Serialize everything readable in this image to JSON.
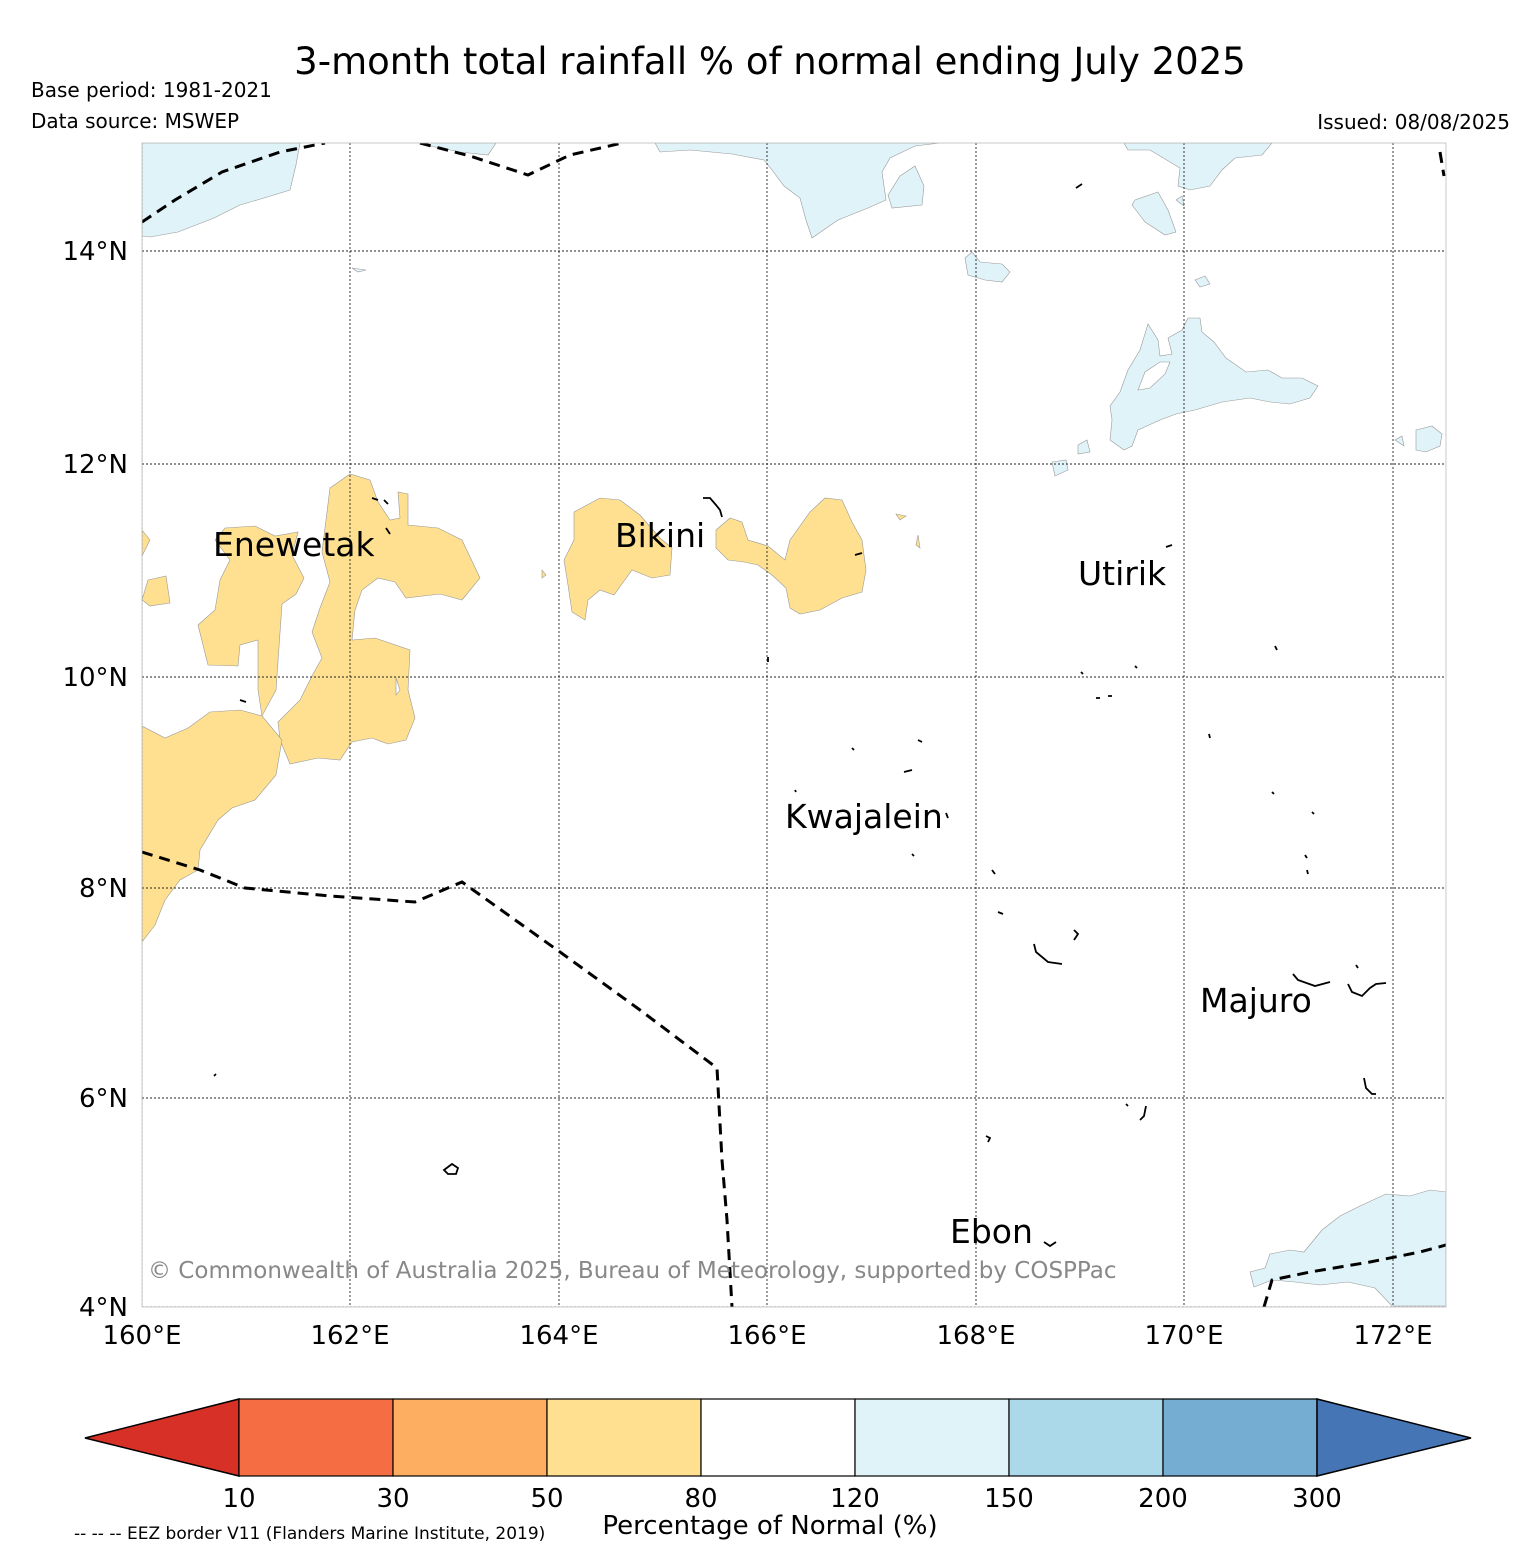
{
  "title": "3-month total rainfall % of normal ending July 2025",
  "base_period": "Base period: 1981-2021",
  "data_source": "Data source: MSWEP",
  "issued": "Issued: 08/08/2025",
  "copyright": "© Commonwealth of Australia 2025, Bureau of Meteorology, supported by COSPPac",
  "eez_note": "-- -- -- EEZ border V11 (Flanders Marine Institute, 2019)",
  "map": {
    "lon_range": [
      160,
      172.5
    ],
    "lat_range": [
      4,
      15
    ],
    "lon_ticks": [
      "160°E",
      "162°E",
      "164°E",
      "166°E",
      "168°E",
      "170°E",
      "172°E"
    ],
    "lat_ticks": [
      "4°N",
      "6°N",
      "8°N",
      "10°N",
      "12°N",
      "14°N"
    ],
    "grid": true,
    "places": [
      "Enewetak",
      "Bikini",
      "Utirik",
      "Kwajalein",
      "Majuro",
      "Ebon"
    ],
    "region_colors": {
      "below_normal_50_80": "#fee090",
      "above_normal_120_150": "#e0f3f8"
    }
  },
  "colorbar": {
    "label": "Percentage of Normal (%)",
    "ticks": [
      "10",
      "30",
      "50",
      "80",
      "120",
      "150",
      "200",
      "300"
    ],
    "colors": [
      "#d73027",
      "#f46d43",
      "#fdae61",
      "#fee090",
      "#ffffff",
      "#e0f3f8",
      "#abd9e9",
      "#74add1",
      "#4575b4"
    ]
  }
}
